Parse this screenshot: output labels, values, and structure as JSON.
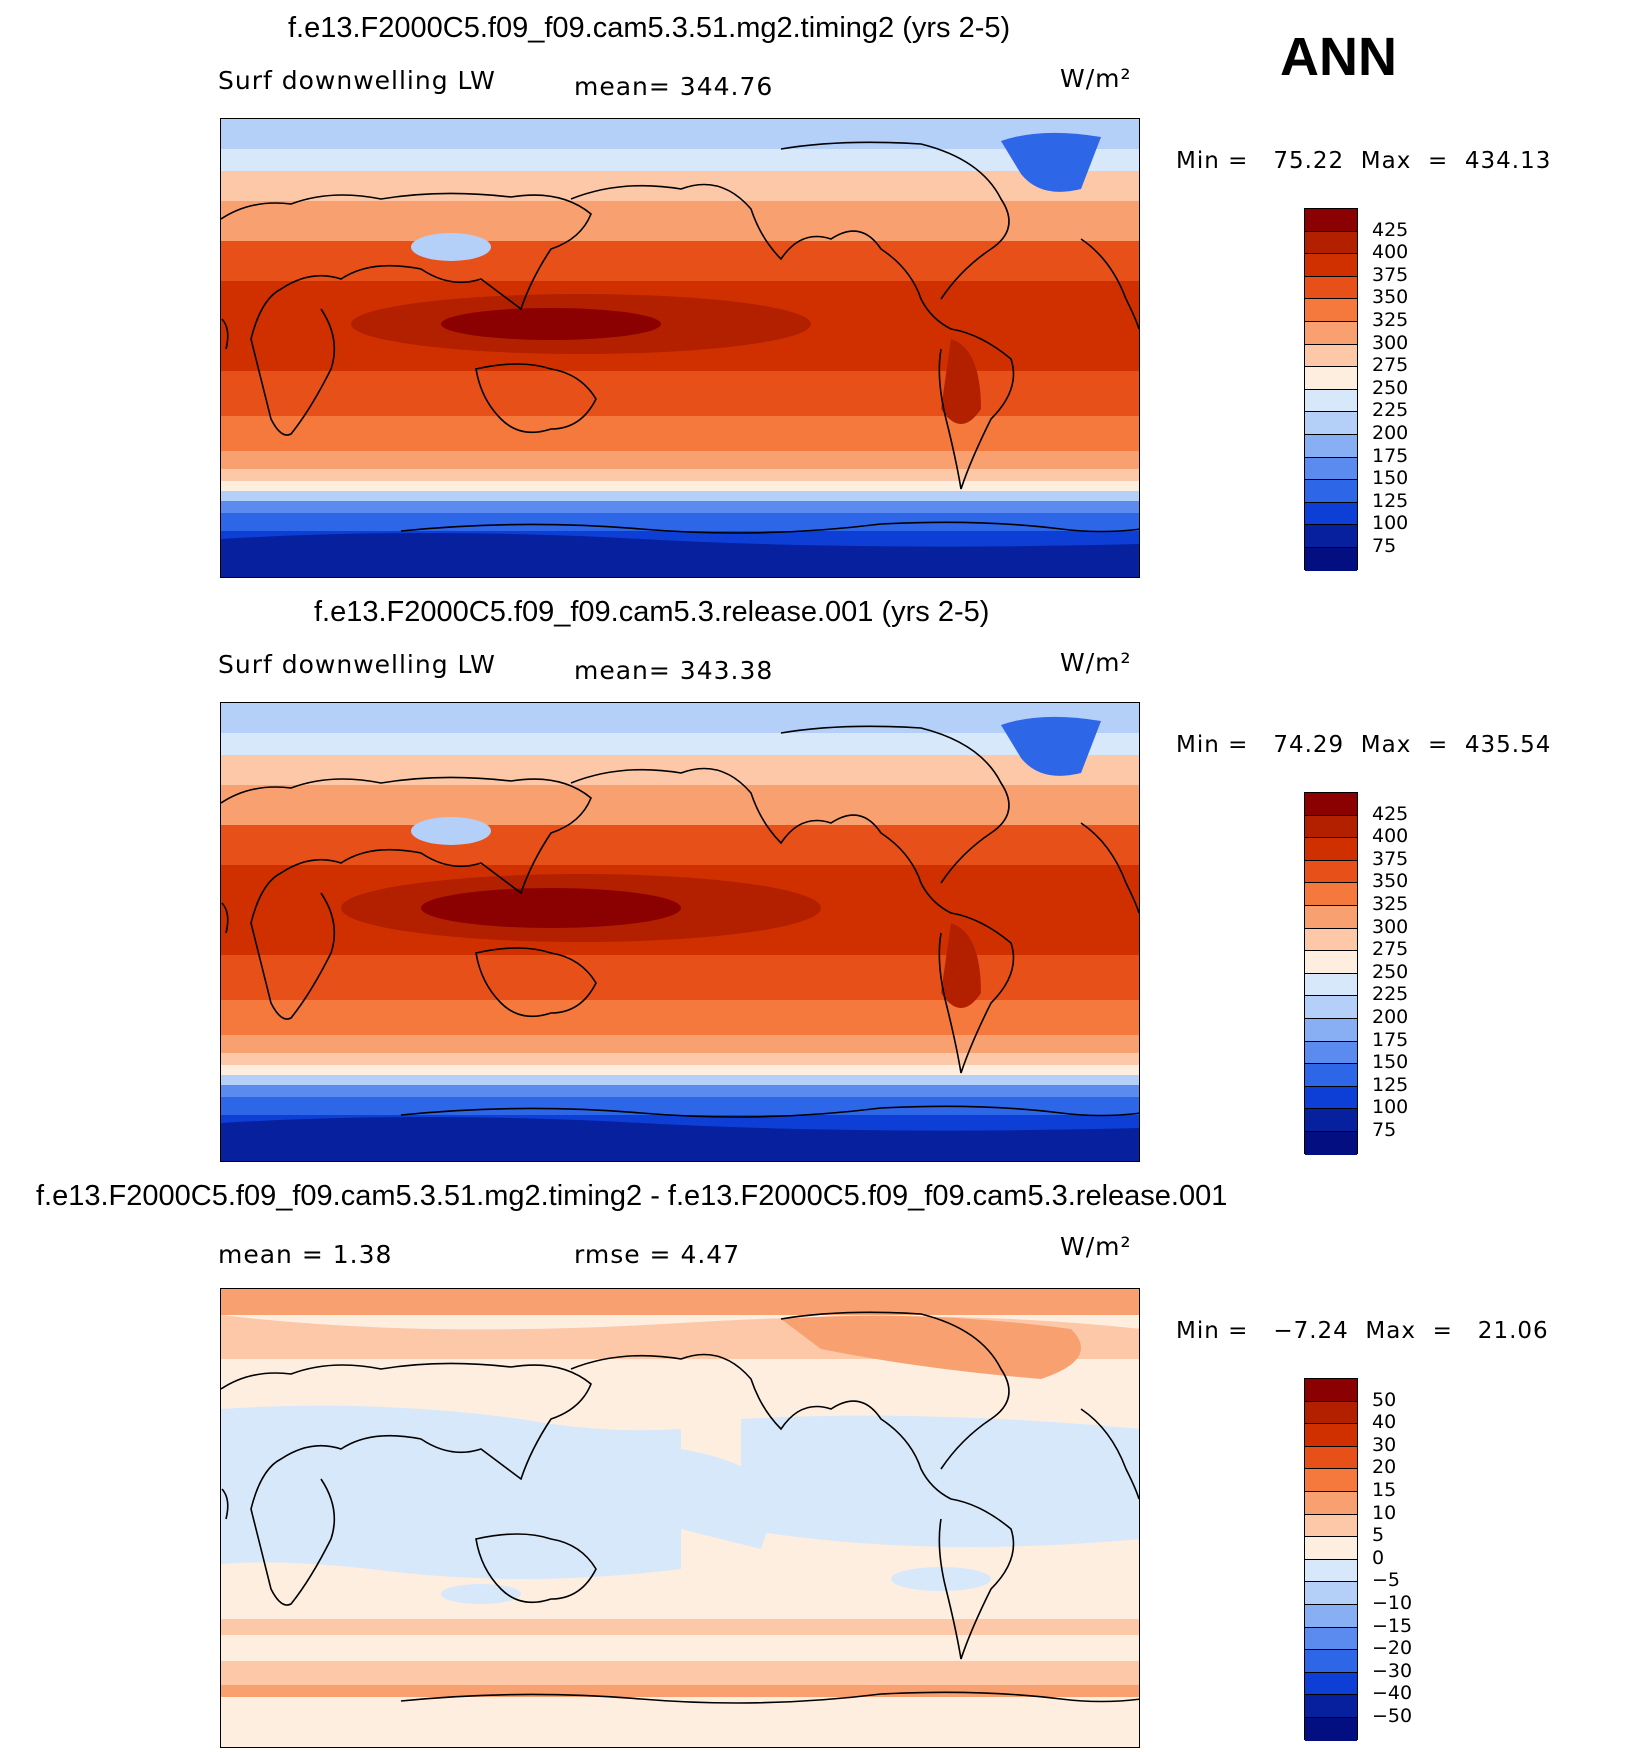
{
  "season": "ANN",
  "panels": [
    {
      "title": "f.e13.F2000C5.f09_f09.cam5.3.51.mg2.timing2 (yrs 2-5)",
      "left_label": "Surf downwelling LW",
      "center_label": "mean= 344.76",
      "right_label": "W/m²",
      "minmax": "Min =   75.22  Max  =  434.13",
      "levels": [
        "425",
        "400",
        "375",
        "350",
        "325",
        "300",
        "275",
        "250",
        "225",
        "200",
        "175",
        "150",
        "125",
        "100",
        "75"
      ]
    },
    {
      "title": "f.e13.F2000C5.f09_f09.cam5.3.release.001 (yrs 2-5)",
      "left_label": "Surf downwelling LW",
      "center_label": "mean= 343.38",
      "right_label": "W/m²",
      "minmax": "Min =   74.29  Max  =  435.54",
      "levels": [
        "425",
        "400",
        "375",
        "350",
        "325",
        "300",
        "275",
        "250",
        "225",
        "200",
        "175",
        "150",
        "125",
        "100",
        "75"
      ]
    },
    {
      "title": "f.e13.F2000C5.f09_f09.cam5.3.51.mg2.timing2 - f.e13.F2000C5.f09_f09.cam5.3.release.001",
      "left_label": "mean =    1.38",
      "center_label": "rmse =    4.47",
      "right_label": "W/m²",
      "minmax": "Min =   −7.24  Max  =   21.06",
      "levels": [
        "50",
        "40",
        "30",
        "20",
        "15",
        "10",
        "5",
        "0",
        "−5",
        "−10",
        "−15",
        "−20",
        "−30",
        "−40",
        "−50"
      ]
    }
  ],
  "colors": {
    "scale": [
      "#8b0000",
      "#b22000",
      "#d03000",
      "#e8501a",
      "#f5783c",
      "#f9a070",
      "#fcc8a8",
      "#fdeee0",
      "#d7e8fb",
      "#b4cff8",
      "#88aef3",
      "#5b8bef",
      "#2e66e8",
      "#0d3fd6",
      "#06209e",
      "#030f80"
    ]
  }
}
